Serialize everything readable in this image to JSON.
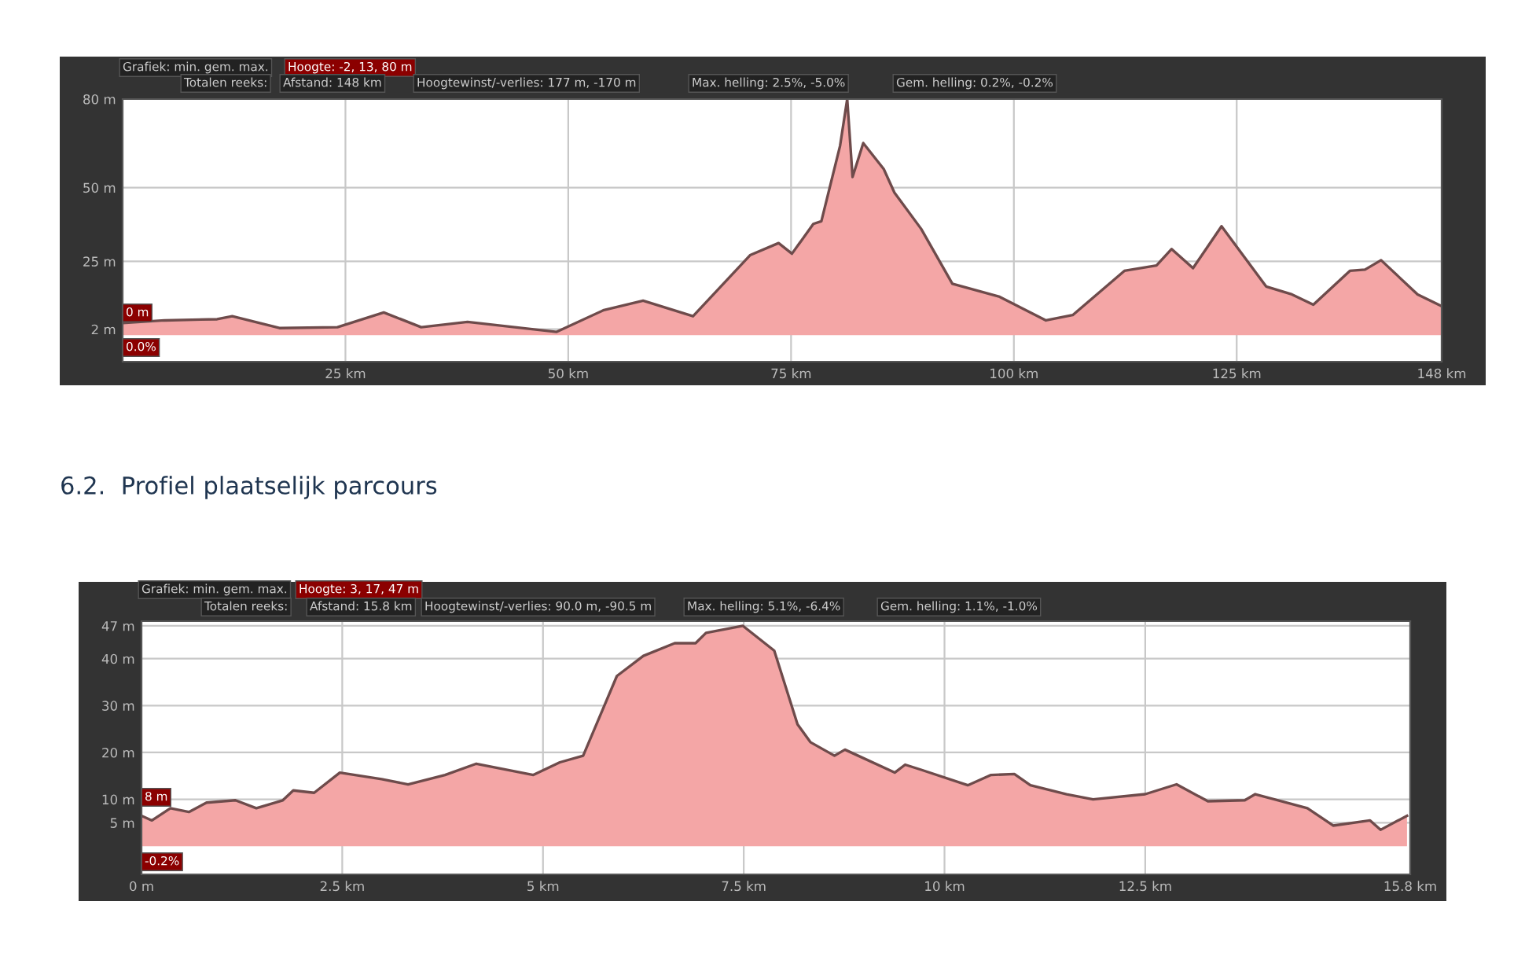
{
  "chart_data": [
    {
      "type": "area",
      "xlim": [
        0,
        148
      ],
      "ylim": [
        -9,
        80
      ],
      "xticks": [
        {
          "value": 25,
          "label": "25 km"
        },
        {
          "value": 50,
          "label": "50 km"
        },
        {
          "value": 75,
          "label": "75 km"
        },
        {
          "value": 100,
          "label": "100 km"
        },
        {
          "value": 125,
          "label": "125 km"
        },
        {
          "value": 148,
          "label": "148 km"
        }
      ],
      "yticks": [
        {
          "value": 2,
          "label": "2 m"
        },
        {
          "value": 25,
          "label": "25 m"
        },
        {
          "value": 50,
          "label": "50 m"
        },
        {
          "value": 80,
          "label": "80 m"
        }
      ],
      "grid": true,
      "annotations": [
        "Grafiek: min. gem. max.",
        "Hoogte: -2, 13, 80 m",
        "Totalen reeks:",
        "Afstand: 148 km",
        "Hoogtewinst/-verlies: 177 m, -170 m",
        "Max. helling: 2.5%, -5.0%",
        "Gem. helling: 0.2%, -0.2%",
        "0 m",
        "0.0%"
      ],
      "series": [
        {
          "color": "#f4a6a6",
          "x": [
            0,
            4.7,
            10.6,
            12.3,
            17.6,
            24.1,
            29.3,
            33.5,
            38.7,
            48.7,
            54.0,
            58.4,
            64.0,
            70.4,
            73.6,
            75.1,
            77.5,
            78.4,
            80.5,
            81.3,
            81.9,
            83.1,
            85.4,
            86.6,
            89.6,
            93.1,
            98.4,
            103.6,
            106.6,
            112.4,
            116.0,
            117.7,
            120.1,
            123.3,
            128.3,
            131.2,
            133.6,
            137.7,
            139.4,
            141.2,
            145.3,
            148
          ],
          "values": [
            4.1,
            5.0,
            5.4,
            6.4,
            2.4,
            2.7,
            7.7,
            2.7,
            4.5,
            1.1,
            8.5,
            11.7,
            6.4,
            27.1,
            31.2,
            27.6,
            37.7,
            38.6,
            64.2,
            80,
            53.6,
            65.1,
            56.3,
            48.3,
            36.0,
            17.4,
            13.0,
            5.0,
            6.8,
            21.8,
            23.6,
            29.2,
            22.7,
            36.9,
            16.5,
            13.8,
            10.3,
            21.8,
            22.2,
            25.4,
            13.8,
            9.8
          ]
        }
      ]
    },
    {
      "type": "area",
      "title": "6.2.  Profiel plaatselijk parcours",
      "xlim": [
        0,
        15.8
      ],
      "ylim": [
        -6,
        48
      ],
      "xticks": [
        {
          "value": 0,
          "label": "0 m"
        },
        {
          "value": 2.5,
          "label": "2.5 km"
        },
        {
          "value": 5,
          "label": "5 km"
        },
        {
          "value": 7.5,
          "label": "7.5 km"
        },
        {
          "value": 10,
          "label": "10 km"
        },
        {
          "value": 12.5,
          "label": "12.5 km"
        },
        {
          "value": 15.8,
          "label": "15.8 km"
        }
      ],
      "yticks": [
        {
          "value": 5,
          "label": "5 m"
        },
        {
          "value": 10,
          "label": "10 m"
        },
        {
          "value": 20,
          "label": "20 m"
        },
        {
          "value": 30,
          "label": "30 m"
        },
        {
          "value": 40,
          "label": "40 m"
        },
        {
          "value": 47,
          "label": "47 m"
        }
      ],
      "grid": true,
      "annotations": [
        "Grafiek: min. gem. max.",
        "Hoogte: 3, 17, 47 m",
        "Totalen reeks:",
        "Afstand: 15.8 km",
        "Hoogtewinst/-verlies: 90.0 m, -90.5 m",
        "Max. helling: 5.1%, -6.4%",
        "Gem. helling: 1.1%, -1.0%",
        "8 m",
        "-0.2%"
      ],
      "series": [
        {
          "color": "#f4a6a6",
          "x": [
            0,
            0.13,
            0.36,
            0.59,
            0.81,
            1.17,
            1.43,
            1.76,
            1.89,
            2.15,
            2.47,
            2.99,
            3.32,
            3.78,
            4.17,
            4.88,
            5.21,
            5.5,
            5.92,
            6.25,
            6.64,
            6.9,
            7.03,
            7.49,
            7.88,
            8.17,
            8.33,
            8.63,
            8.76,
            9.38,
            9.51,
            9.71,
            10.29,
            10.58,
            10.87,
            11.07,
            11.52,
            11.85,
            12.5,
            12.89,
            13.28,
            13.74,
            13.87,
            14.52,
            14.84,
            15.3,
            15.43,
            15.76
          ],
          "values": [
            6.5,
            5.5,
            8.1,
            7.3,
            9.3,
            9.8,
            8.1,
            9.8,
            11.9,
            11.4,
            15.7,
            14.3,
            13.2,
            15.2,
            17.6,
            15.2,
            17.9,
            19.3,
            36.3,
            40.6,
            43.3,
            43.3,
            45.5,
            47,
            41.7,
            26.0,
            22.2,
            19.3,
            20.6,
            15.7,
            17.4,
            16.3,
            13.0,
            15.2,
            15.4,
            13.0,
            11.1,
            10.0,
            11.1,
            13.2,
            9.6,
            9.8,
            11.1,
            8.1,
            4.4,
            5.5,
            3.5,
            6.5
          ]
        }
      ]
    }
  ]
}
